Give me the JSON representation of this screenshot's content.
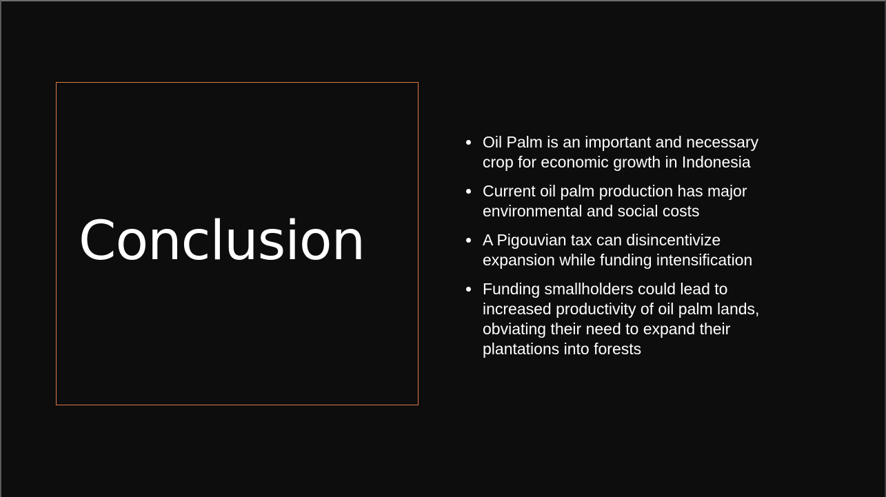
{
  "slide": {
    "title": "Conclusion",
    "bullets": [
      "Oil Palm is an important and necessary crop for economic growth in Indonesia",
      "Current oil palm production has major environmental and social costs",
      "A Pigouvian tax can disincentivize expansion while funding intensification",
      "Funding smallholders could lead to increased productivity of oil palm lands, obviating their need to expand their plantations into forests"
    ]
  },
  "colors": {
    "background": "#0d0d0d",
    "title_box_border": "#e07b4a",
    "text": "#ffffff"
  }
}
